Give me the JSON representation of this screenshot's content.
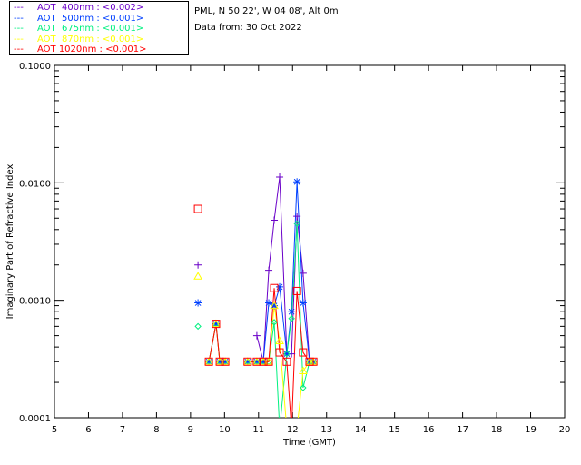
{
  "chart_data": {
    "type": "line",
    "title": "",
    "station": "PML, N 50 22', W 04 08', Alt 0m",
    "date_line": "Data from: 30 Oct 2022",
    "xlabel": "Time (GMT)",
    "ylabel": "Imaginary Part of Refractive Index",
    "xlim": [
      5,
      20
    ],
    "ylim": [
      0.0001,
      0.1
    ],
    "yscale": "log",
    "xticks": [
      "5",
      "6",
      "7",
      "8",
      "9",
      "10",
      "11",
      "12",
      "13",
      "14",
      "15",
      "16",
      "17",
      "18",
      "19",
      "20"
    ],
    "yticks": [
      "0.0001",
      "0.0010",
      "0.0100",
      "0.1000"
    ],
    "legend_position": "top-left",
    "x": [
      9.22,
      9.54,
      9.75,
      9.86,
      10.02,
      10.68,
      10.95,
      11.14,
      11.3,
      11.46,
      11.62,
      11.83,
      11.97,
      12.13,
      12.31,
      12.5,
      12.61
    ],
    "series": [
      {
        "name": "AOT  400nm : <0.002>",
        "color": "#6a00c8",
        "marker": "plus",
        "values": [
          0.002,
          null,
          null,
          null,
          null,
          null,
          0.0005,
          0.0003,
          0.0018,
          0.0048,
          0.0112,
          0.00035,
          0.00035,
          0.0052,
          0.0017,
          0.0003,
          0.0003
        ]
      },
      {
        "name": "AOT  500nm : <0.001>",
        "color": "#0040ff",
        "marker": "asterisk",
        "values": [
          0.00095,
          0.0003,
          0.00063,
          0.0003,
          0.0003,
          0.0003,
          0.0003,
          0.0003,
          0.00095,
          0.0009,
          0.0013,
          0.00035,
          0.0008,
          0.0102,
          0.00095,
          0.0003,
          0.0003
        ]
      },
      {
        "name": "AOT  675nm : <0.001>",
        "color": "#00f080",
        "marker": "diamond",
        "values": [
          0.0006,
          0.0003,
          0.00063,
          0.0003,
          0.0003,
          0.0003,
          0.0003,
          0.0003,
          0.0003,
          0.00065,
          8e-05,
          0.00035,
          0.0007,
          0.0045,
          0.00018,
          0.0003,
          0.0003
        ]
      },
      {
        "name": "AOT  870nm : <0.001>",
        "color": "#ffff00",
        "marker": "triangle",
        "values": [
          0.0016,
          0.0003,
          0.00063,
          0.0003,
          0.0003,
          0.0003,
          0.0003,
          0.0003,
          0.0003,
          0.0009,
          0.00045,
          8e-05,
          null,
          8e-05,
          0.00025,
          0.0003,
          0.0003
        ]
      },
      {
        "name": "AOT 1020nm : <0.001>",
        "color": "#ff0000",
        "marker": "square",
        "values": [
          0.006,
          0.0003,
          0.00063,
          0.0003,
          0.0003,
          0.0003,
          0.0003,
          0.0003,
          0.0003,
          0.00127,
          0.00036,
          0.0003,
          8e-05,
          0.0012,
          0.00036,
          0.0003,
          0.0003
        ]
      }
    ]
  }
}
